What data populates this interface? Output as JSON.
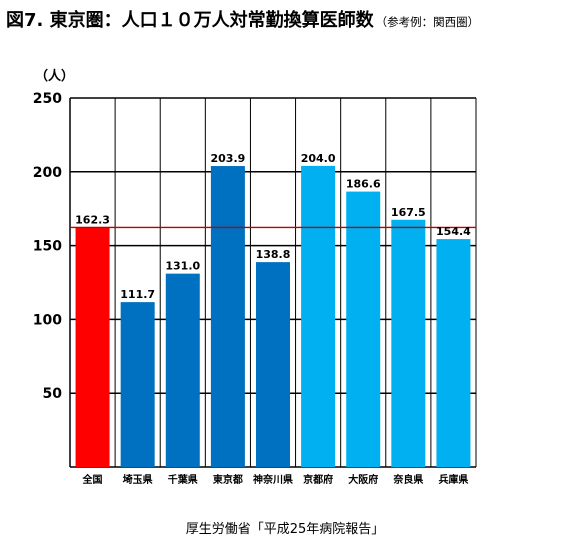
{
  "title": {
    "main": "図7. 東京圏：人口１０万人対常勤換算医師数",
    "note": "（参考例：関西圏）"
  },
  "source": "厚生労働省「平成25年病院報告」",
  "chart_data": {
    "type": "bar",
    "title": "図7. 東京圏：人口１０万人対常勤換算医師数",
    "ylabel": "（人）",
    "xlabel": "",
    "ylim": [
      0,
      250
    ],
    "yticks": [
      50,
      100,
      150,
      200,
      250
    ],
    "grid": true,
    "categories": [
      "全国",
      "埼玉県",
      "千葉県",
      "東京都",
      "神奈川県",
      "京都府",
      "大阪府",
      "奈良県",
      "兵庫県"
    ],
    "values": [
      162.3,
      111.7,
      131.0,
      203.9,
      138.8,
      204.0,
      186.6,
      167.5,
      154.4
    ],
    "value_labels": [
      "162.3",
      "111.7",
      "131.0",
      "203.9",
      "138.8",
      "204.0",
      "186.6",
      "167.5",
      "154.4"
    ],
    "bar_colors": [
      "#ff0000",
      "#0070c0",
      "#0070c0",
      "#0070c0",
      "#0070c0",
      "#00b0f0",
      "#00b0f0",
      "#00b0f0",
      "#00b0f0"
    ],
    "reference_line": {
      "value": 162.3,
      "color": "#c00000"
    }
  }
}
